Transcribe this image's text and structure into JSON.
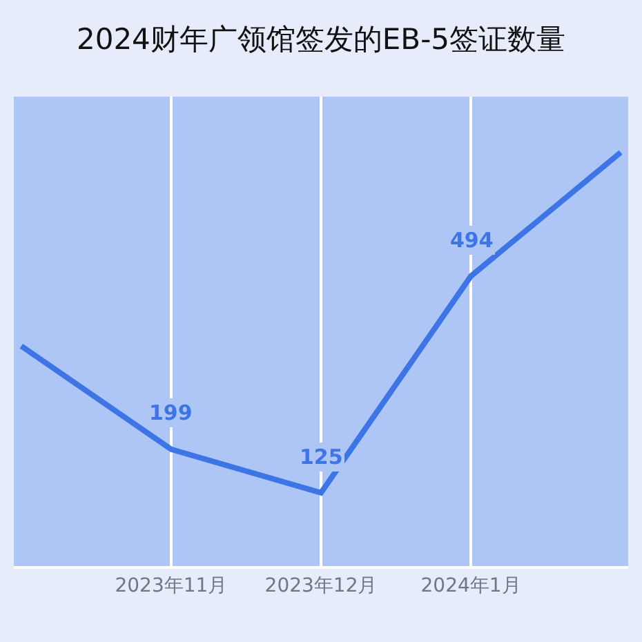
{
  "chart_data": {
    "type": "line",
    "title": "2024财年广领馆签发的EB-5签证数量",
    "categories": [
      null,
      "2023年11月",
      "2023年12月",
      "2024年1月",
      null
    ],
    "series": [
      {
        "color": "#3d74e6",
        "values": [
          375,
          199,
          125,
          494,
          705
        ],
        "value_labels": [
          null,
          "199",
          "125",
          "494",
          null
        ]
      }
    ],
    "ylim": [
      0,
      800
    ],
    "tick_labels": "x",
    "grid": "x",
    "legend": false,
    "marker": "none",
    "line_style": "solid"
  }
}
